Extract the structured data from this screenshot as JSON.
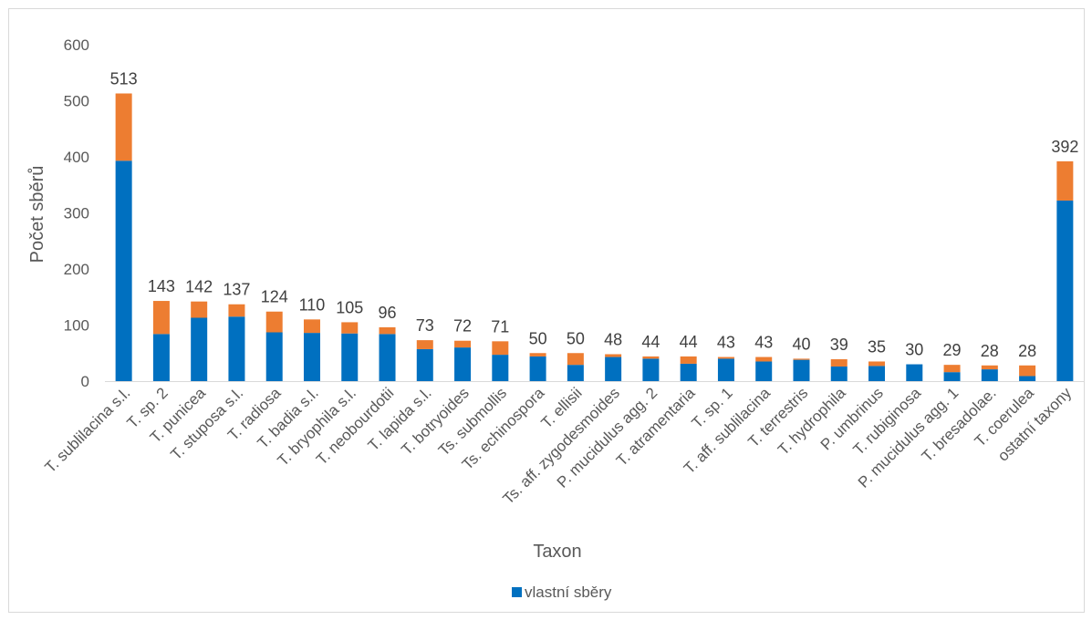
{
  "chart_data": {
    "type": "bar",
    "stacked": true,
    "categories": [
      "T. sublilacina s.l.",
      "T. sp. 2",
      "T. punicea",
      "T. stuposa s.l.",
      "T. radiosa",
      "T. badia s.l.",
      "T. bryophila s.l.",
      "T. neobourdotii",
      "T. lapida s.l.",
      "T. botryoides",
      "Ts. submollis",
      "Ts. echinospora",
      "T. ellisii",
      "Ts. aff. zygodesmoides",
      "P. mucidulus agg. 2",
      "T. atramentaria",
      "T. sp. 1",
      "T. aff. sublilacina",
      "T. terrestris",
      "T. hydrophila",
      "P. umbrinus",
      "T. rubiginosa",
      "P. mucidulus agg. 1",
      "T. bresadolae.",
      "T. coerulea",
      "ostatní taxony"
    ],
    "series": [
      {
        "name": "vlastní sběry",
        "color": "#0070c0",
        "values": [
          393,
          84,
          113,
          115,
          87,
          86,
          85,
          84,
          57,
          60,
          47,
          44,
          29,
          43,
          40,
          31,
          40,
          35,
          38,
          26,
          27,
          30,
          16,
          21,
          9,
          322
        ]
      },
      {
        "color": "#ed7d31",
        "values": [
          120,
          59,
          29,
          22,
          37,
          24,
          20,
          12,
          16,
          12,
          24,
          6,
          21,
          5,
          4,
          13,
          3,
          8,
          2,
          13,
          8,
          0,
          13,
          7,
          19,
          70
        ]
      }
    ],
    "totals": [
      513,
      143,
      142,
      137,
      124,
      110,
      105,
      96,
      73,
      72,
      71,
      50,
      50,
      48,
      44,
      44,
      43,
      43,
      40,
      39,
      35,
      30,
      29,
      28,
      28,
      392
    ],
    "xlabel": "Taxon",
    "ylabel": "Počet sběrů",
    "ylim": [
      0,
      600
    ],
    "yticks": [
      0,
      100,
      200,
      300,
      400,
      500,
      600
    ],
    "grid": false,
    "legend_position": "bottom"
  }
}
